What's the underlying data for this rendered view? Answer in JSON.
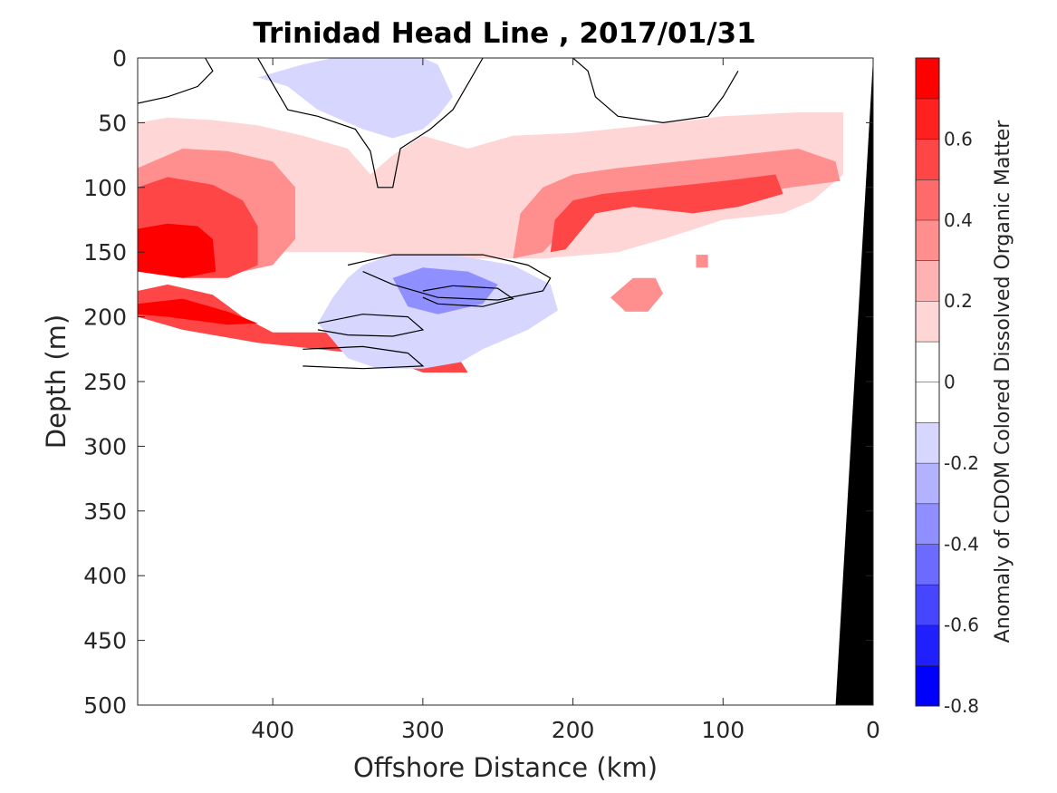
{
  "chart_data": {
    "type": "heatmap",
    "title": "Trinidad Head Line , 2017/01/31",
    "xlabel": "Offshore Distance (km)",
    "ylabel": "Depth (m)",
    "xlim": [
      490,
      0
    ],
    "ylim": [
      0,
      500
    ],
    "x_ticks": [
      "400",
      "300",
      "200",
      "100",
      "0"
    ],
    "y_ticks": [
      "0",
      "50",
      "100",
      "150",
      "200",
      "250",
      "300",
      "350",
      "400",
      "450",
      "500"
    ],
    "colorbar": {
      "label": "Anomaly of CDOM Colored Dissolved Organic Matter",
      "range": [
        -0.8,
        0.8
      ],
      "ticks": [
        "-0.8",
        "-0.6",
        "-0.4",
        "-0.2",
        "0",
        "0.2",
        "0.4",
        "0.6"
      ],
      "levels": [
        -0.8,
        -0.7,
        -0.6,
        -0.5,
        -0.4,
        -0.3,
        -0.2,
        -0.1,
        0,
        0.1,
        0.2,
        0.3,
        0.4,
        0.5,
        0.6,
        0.7,
        0.8
      ],
      "colors": [
        "#0000ff",
        "#2020ff",
        "#4646ff",
        "#6b6bff",
        "#8f8fff",
        "#b2b2ff",
        "#d6d6ff",
        "#ffffff",
        "#ffffff",
        "#ffd6d6",
        "#ffb2b2",
        "#ff8f8f",
        "#ff6b6b",
        "#ff4646",
        "#ff2020",
        "#ff0000"
      ]
    },
    "regions": [
      {
        "level": 0.15,
        "points": [
          [
            490,
            50
          ],
          [
            470,
            46
          ],
          [
            440,
            48
          ],
          [
            410,
            52
          ],
          [
            380,
            60
          ],
          [
            350,
            70
          ],
          [
            335,
            90
          ],
          [
            320,
            75
          ],
          [
            300,
            60
          ],
          [
            270,
            70
          ],
          [
            240,
            60
          ],
          [
            200,
            58
          ],
          [
            150,
            52
          ],
          [
            100,
            45
          ],
          [
            50,
            42
          ],
          [
            20,
            42
          ],
          [
            20,
            90
          ],
          [
            40,
            110
          ],
          [
            60,
            120
          ],
          [
            100,
            125
          ],
          [
            140,
            140
          ],
          [
            170,
            150
          ],
          [
            220,
            155
          ],
          [
            300,
            155
          ],
          [
            340,
            150
          ],
          [
            400,
            150
          ],
          [
            440,
            158
          ],
          [
            470,
            150
          ],
          [
            490,
            155
          ]
        ]
      },
      {
        "level": 0.35,
        "points": [
          [
            490,
            85
          ],
          [
            460,
            70
          ],
          [
            430,
            72
          ],
          [
            400,
            80
          ],
          [
            385,
            100
          ],
          [
            385,
            140
          ],
          [
            400,
            160
          ],
          [
            440,
            170
          ],
          [
            470,
            168
          ],
          [
            490,
            165
          ]
        ]
      },
      {
        "level": 0.35,
        "points": [
          [
            240,
            155
          ],
          [
            235,
            120
          ],
          [
            220,
            100
          ],
          [
            200,
            90
          ],
          [
            170,
            85
          ],
          [
            130,
            80
          ],
          [
            90,
            75
          ],
          [
            50,
            70
          ],
          [
            25,
            80
          ],
          [
            22,
            95
          ],
          [
            55,
            100
          ],
          [
            80,
            105
          ],
          [
            110,
            110
          ],
          [
            150,
            115
          ],
          [
            180,
            112
          ],
          [
            200,
            125
          ],
          [
            220,
            150
          ]
        ]
      },
      {
        "level": 0.55,
        "points": [
          [
            490,
            100
          ],
          [
            470,
            92
          ],
          [
            440,
            98
          ],
          [
            420,
            110
          ],
          [
            410,
            130
          ],
          [
            410,
            160
          ],
          [
            430,
            170
          ],
          [
            460,
            170
          ],
          [
            490,
            165
          ]
        ]
      },
      {
        "level": 0.55,
        "points": [
          [
            215,
            150
          ],
          [
            212,
            125
          ],
          [
            200,
            110
          ],
          [
            180,
            105
          ],
          [
            140,
            100
          ],
          [
            100,
            95
          ],
          [
            65,
            90
          ],
          [
            60,
            105
          ],
          [
            90,
            115
          ],
          [
            120,
            120
          ],
          [
            160,
            115
          ],
          [
            185,
            120
          ],
          [
            205,
            148
          ]
        ]
      },
      {
        "level": 0.75,
        "points": [
          [
            490,
            132
          ],
          [
            470,
            128
          ],
          [
            450,
            130
          ],
          [
            440,
            140
          ],
          [
            438,
            165
          ],
          [
            460,
            170
          ],
          [
            490,
            165
          ]
        ]
      },
      {
        "level": 0.55,
        "points": [
          [
            490,
            180
          ],
          [
            470,
            175
          ],
          [
            440,
            183
          ],
          [
            420,
            200
          ],
          [
            400,
            212
          ],
          [
            360,
            212
          ],
          [
            330,
            205
          ],
          [
            300,
            210
          ],
          [
            280,
            225
          ],
          [
            270,
            243
          ],
          [
            300,
            243
          ],
          [
            330,
            230
          ],
          [
            370,
            225
          ],
          [
            410,
            220
          ],
          [
            460,
            210
          ],
          [
            490,
            200
          ]
        ]
      },
      {
        "level": 0.75,
        "points": [
          [
            490,
            190
          ],
          [
            460,
            186
          ],
          [
            430,
            196
          ],
          [
            410,
            205
          ],
          [
            430,
            206
          ],
          [
            470,
            200
          ],
          [
            490,
            198
          ]
        ]
      },
      {
        "level": -0.15,
        "points": [
          [
            410,
            15
          ],
          [
            380,
            5
          ],
          [
            360,
            0
          ],
          [
            300,
            0
          ],
          [
            290,
            5
          ],
          [
            280,
            30
          ],
          [
            290,
            45
          ],
          [
            300,
            55
          ],
          [
            320,
            62
          ],
          [
            340,
            55
          ],
          [
            370,
            40
          ],
          [
            390,
            22
          ]
        ]
      },
      {
        "level": -0.15,
        "points": [
          [
            340,
            160
          ],
          [
            320,
            152
          ],
          [
            280,
            152
          ],
          [
            240,
            160
          ],
          [
            215,
            175
          ],
          [
            210,
            195
          ],
          [
            230,
            210
          ],
          [
            260,
            225
          ],
          [
            275,
            235
          ],
          [
            300,
            240
          ],
          [
            330,
            240
          ],
          [
            350,
            232
          ],
          [
            360,
            218
          ],
          [
            370,
            205
          ],
          [
            360,
            185
          ],
          [
            350,
            170
          ]
        ]
      },
      {
        "level": -0.35,
        "points": [
          [
            320,
            170
          ],
          [
            300,
            162
          ],
          [
            270,
            165
          ],
          [
            250,
            175
          ],
          [
            260,
            190
          ],
          [
            290,
            198
          ],
          [
            310,
            192
          ]
        ]
      },
      {
        "level": 0.35,
        "points": [
          [
            160,
            170
          ],
          [
            145,
            170
          ],
          [
            140,
            182
          ],
          [
            150,
            196
          ],
          [
            165,
            196
          ],
          [
            175,
            185
          ]
        ]
      },
      {
        "level": 0.35,
        "points": [
          [
            118,
            152
          ],
          [
            110,
            152
          ],
          [
            110,
            162
          ],
          [
            118,
            162
          ]
        ]
      }
    ],
    "contours": [
      [
        [
          410,
          0
        ],
        [
          400,
          20
        ],
        [
          390,
          40
        ],
        [
          370,
          45
        ],
        [
          345,
          55
        ],
        [
          335,
          72
        ],
        [
          330,
          100
        ],
        [
          320,
          100
        ],
        [
          315,
          70
        ],
        [
          295,
          55
        ],
        [
          280,
          40
        ],
        [
          270,
          20
        ],
        [
          260,
          0
        ]
      ],
      [
        [
          200,
          0
        ],
        [
          190,
          10
        ],
        [
          185,
          30
        ],
        [
          170,
          45
        ],
        [
          140,
          50
        ],
        [
          110,
          45
        ],
        [
          100,
          30
        ],
        [
          90,
          10
        ]
      ],
      [
        [
          490,
          35
        ],
        [
          470,
          30
        ],
        [
          450,
          22
        ],
        [
          440,
          10
        ],
        [
          445,
          0
        ]
      ],
      [
        [
          350,
          160
        ],
        [
          320,
          152
        ],
        [
          260,
          152
        ],
        [
          230,
          160
        ],
        [
          215,
          170
        ],
        [
          220,
          180
        ],
        [
          250,
          187
        ],
        [
          290,
          185
        ],
        [
          320,
          175
        ],
        [
          340,
          165
        ]
      ],
      [
        [
          300,
          180
        ],
        [
          280,
          176
        ],
        [
          250,
          178
        ],
        [
          240,
          186
        ],
        [
          260,
          192
        ],
        [
          290,
          190
        ],
        [
          300,
          185
        ]
      ],
      [
        [
          370,
          205
        ],
        [
          340,
          198
        ],
        [
          310,
          200
        ],
        [
          300,
          210
        ],
        [
          320,
          215
        ],
        [
          350,
          214
        ],
        [
          370,
          210
        ]
      ],
      [
        [
          380,
          225
        ],
        [
          340,
          223
        ],
        [
          310,
          228
        ],
        [
          300,
          238
        ],
        [
          340,
          240
        ],
        [
          380,
          238
        ]
      ]
    ],
    "land_polygon": [
      [
        0,
        0
      ],
      [
        25,
        500
      ],
      [
        0,
        500
      ]
    ]
  }
}
